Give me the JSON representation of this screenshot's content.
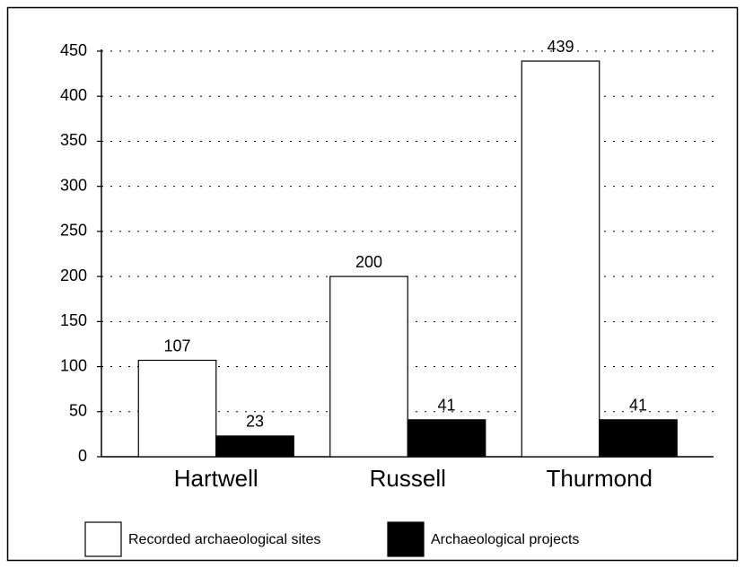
{
  "chart_data": {
    "type": "bar",
    "categories": [
      "Hartwell",
      "Russell",
      "Thurmond"
    ],
    "series": [
      {
        "name": "Recorded archaeological sites",
        "color": "#ffffff",
        "values": [
          107,
          200,
          439
        ]
      },
      {
        "name": "Archaeological projects",
        "color": "#000000",
        "values": [
          23,
          41,
          41
        ]
      }
    ],
    "ylim": [
      0,
      450
    ],
    "yticks": [
      0,
      50,
      100,
      150,
      200,
      250,
      300,
      350,
      400,
      450
    ],
    "grid": true,
    "legend": "bottom"
  }
}
